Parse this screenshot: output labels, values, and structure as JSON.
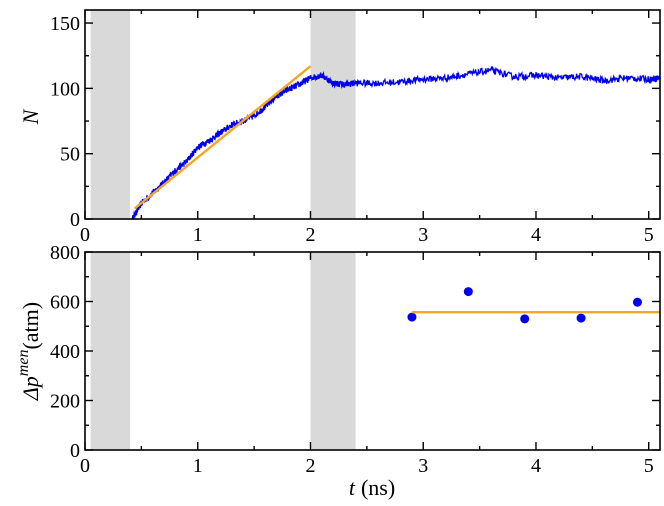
{
  "chart_data": [
    {
      "type": "line",
      "panel": "top",
      "ylabel": "N",
      "xlabel": "",
      "xlim": [
        0,
        5.1
      ],
      "ylim": [
        0,
        160
      ],
      "xticks": [
        0,
        1,
        2,
        3,
        4,
        5
      ],
      "yticks": [
        0,
        50,
        100,
        150
      ],
      "shaded_ranges": [
        [
          0.05,
          0.4
        ],
        [
          2.0,
          2.4
        ]
      ],
      "series": [
        {
          "color": "#0000ee",
          "style": "noisy-line",
          "x": [
            0.42,
            0.5,
            0.6,
            0.7,
            0.8,
            0.9,
            1.0,
            1.1,
            1.2,
            1.3,
            1.4,
            1.5,
            1.6,
            1.7,
            1.8,
            1.9,
            2.0,
            2.1,
            2.2,
            2.3,
            2.4,
            2.6,
            2.8,
            3.0,
            3.2,
            3.4,
            3.6,
            3.8,
            4.0,
            4.2,
            4.4,
            4.6,
            4.8,
            5.0,
            5.1
          ],
          "y": [
            0,
            12,
            20,
            28,
            37,
            44,
            55,
            60,
            66,
            72,
            75,
            79,
            86,
            94,
            99,
            103,
            108,
            110,
            104,
            103,
            104,
            104,
            105,
            107,
            108,
            111,
            114,
            109,
            110,
            108,
            109,
            106,
            108,
            107,
            108
          ]
        },
        {
          "color": "#f5a623",
          "style": "fit-line",
          "x": [
            0.44,
            2.0
          ],
          "y": [
            8,
            117
          ]
        }
      ]
    },
    {
      "type": "scatter",
      "panel": "bottom",
      "ylabel_main": "Δp",
      "ylabel_sup": "men",
      "ylabel_unit": "(atm)",
      "xlabel_main": "t",
      "xlabel_unit": "(ns)",
      "xlim": [
        0,
        5.1
      ],
      "ylim": [
        0,
        800
      ],
      "xticks": [
        0,
        1,
        2,
        3,
        4,
        5
      ],
      "yticks": [
        0,
        200,
        400,
        600,
        800
      ],
      "shaded_ranges": [
        [
          0.05,
          0.4
        ],
        [
          2.0,
          2.4
        ]
      ],
      "series": [
        {
          "color": "#0000ee",
          "style": "points",
          "x": [
            2.9,
            3.4,
            3.9,
            4.4,
            4.9
          ],
          "y": [
            537,
            640,
            530,
            533,
            597
          ]
        },
        {
          "color": "#f5a623",
          "style": "fit-line",
          "x": [
            2.9,
            5.1
          ],
          "y": [
            557,
            557
          ]
        }
      ]
    }
  ]
}
